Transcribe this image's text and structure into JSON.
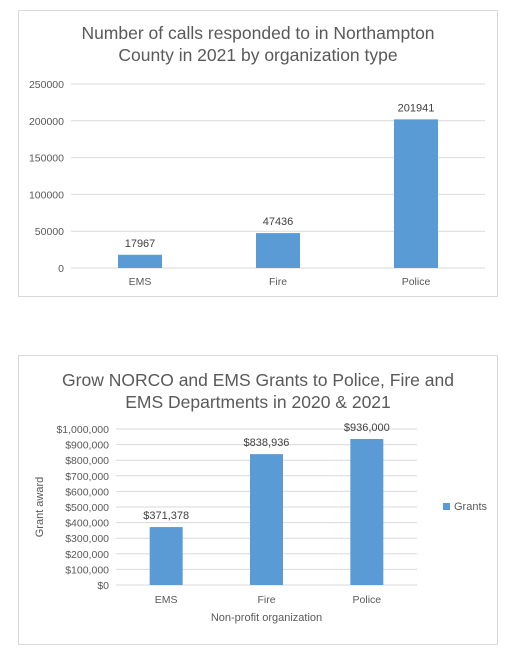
{
  "chart_data": [
    {
      "type": "bar",
      "title_lines": [
        "Number of calls responded to in Northampton",
        "County in 2021 by organization type"
      ],
      "categories": [
        "EMS",
        "Fire",
        "Police"
      ],
      "values": [
        17967,
        47436,
        201941
      ],
      "data_labels": [
        "17967",
        "47436",
        "201941"
      ],
      "ylim": [
        0,
        250000
      ],
      "yticks": [
        0,
        50000,
        100000,
        150000,
        200000,
        250000
      ],
      "ytick_labels": [
        "0",
        "50000",
        "100000",
        "150000",
        "200000",
        "250000"
      ],
      "xlabel": "",
      "ylabel": "",
      "grid": true,
      "legend": "none",
      "bar_color": "#5b9bd5"
    },
    {
      "type": "bar",
      "title_lines": [
        "Grow NORCO and EMS Grants to Police, Fire and",
        "EMS Departments in 2020 & 2021"
      ],
      "categories": [
        "EMS",
        "Fire",
        "Police"
      ],
      "series": [
        {
          "name": "Grants",
          "values": [
            371378,
            838936,
            936000
          ]
        }
      ],
      "data_labels": [
        "$371,378",
        "$838,936",
        "$936,000"
      ],
      "ylim": [
        0,
        1000000
      ],
      "yticks": [
        0,
        100000,
        200000,
        300000,
        400000,
        500000,
        600000,
        700000,
        800000,
        900000,
        1000000
      ],
      "ytick_labels": [
        "$0",
        "$100,000",
        "$200,000",
        "$300,000",
        "$400,000",
        "$500,000",
        "$600,000",
        "$700,000",
        "$800,000",
        "$900,000",
        "$1,000,000"
      ],
      "xlabel": "Non-profit organization",
      "ylabel": "Grant award",
      "grid": true,
      "legend": "right",
      "bar_color": "#5b9bd5"
    }
  ]
}
